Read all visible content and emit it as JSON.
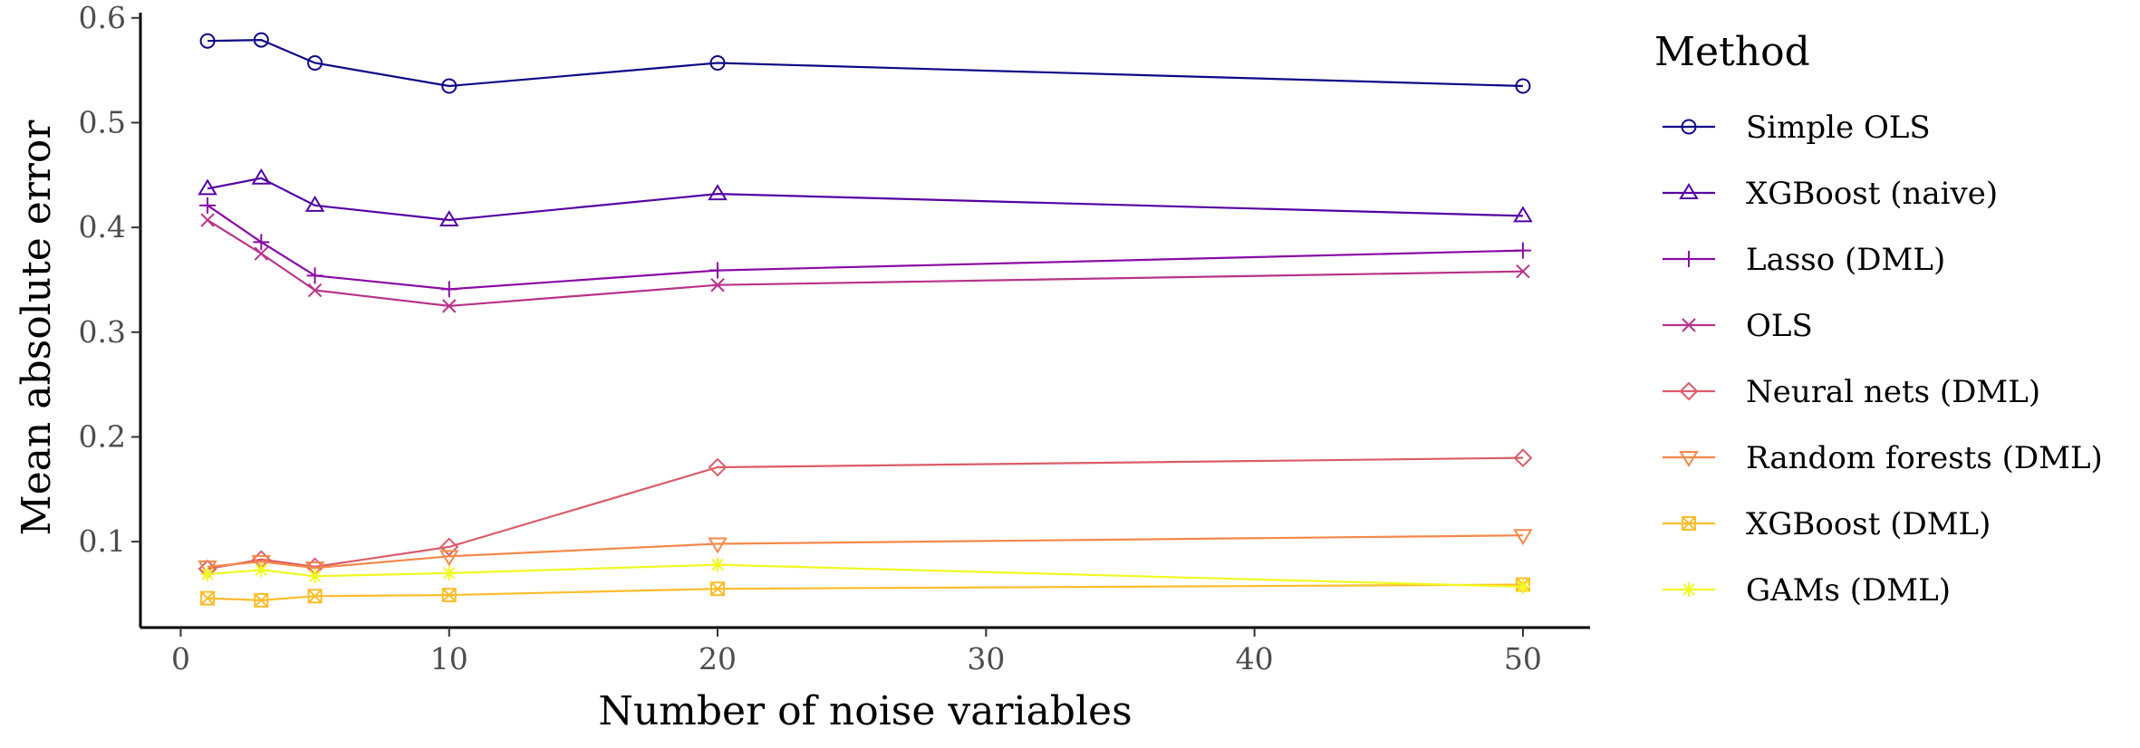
{
  "chart_data": {
    "type": "line",
    "title": "",
    "xlabel": "Number of noise variables",
    "ylabel": "Mean absolute error",
    "xlim": [
      -1.5,
      52.5
    ],
    "ylim": [
      0.018,
      0.605
    ],
    "xticks": [
      0,
      10,
      20,
      30,
      40,
      50
    ],
    "xtick_labels": [
      "0",
      "10",
      "20",
      "30",
      "40",
      "50"
    ],
    "yticks": [
      0.1,
      0.2,
      0.3,
      0.4,
      0.5,
      0.6
    ],
    "ytick_labels": [
      "0.1",
      "0.2",
      "0.3",
      "0.4",
      "0.5",
      "0.6"
    ],
    "grid": false,
    "legend_title": "Method",
    "legend_position": "right",
    "x": [
      1,
      3,
      5,
      10,
      20,
      50
    ],
    "series": [
      {
        "name": "Simple OLS",
        "marker": "circle",
        "color": "#0D0887",
        "values": [
          0.578,
          0.579,
          0.557,
          0.535,
          0.557,
          0.535
        ]
      },
      {
        "name": "XGBoost (naive)",
        "marker": "triangle",
        "color": "#5402A3",
        "values": [
          0.437,
          0.447,
          0.421,
          0.407,
          0.432,
          0.411
        ]
      },
      {
        "name": "Lasso (DML)",
        "marker": "plus",
        "color": "#8B0AA5",
        "values": [
          0.421,
          0.386,
          0.354,
          0.341,
          0.359,
          0.378
        ]
      },
      {
        "name": "OLS",
        "marker": "cross",
        "color": "#B93289",
        "values": [
          0.407,
          0.375,
          0.34,
          0.325,
          0.345,
          0.358
        ]
      },
      {
        "name": "Neural nets (DML)",
        "marker": "diamond",
        "color": "#DB5C68",
        "values": [
          0.074,
          0.083,
          0.076,
          0.095,
          0.171,
          0.18
        ]
      },
      {
        "name": "Random forests (DML)",
        "marker": "triangle-down",
        "color": "#F48849",
        "values": [
          0.076,
          0.081,
          0.075,
          0.086,
          0.098,
          0.106
        ]
      },
      {
        "name": "XGBoost (DML)",
        "marker": "square-cross",
        "color": "#FEBC2A",
        "values": [
          0.046,
          0.044,
          0.048,
          0.049,
          0.055,
          0.059
        ]
      },
      {
        "name": "GAMs (DML)",
        "marker": "asterisk",
        "color": "#F0F921",
        "values": [
          0.069,
          0.073,
          0.067,
          0.07,
          0.078,
          0.057
        ]
      }
    ]
  }
}
